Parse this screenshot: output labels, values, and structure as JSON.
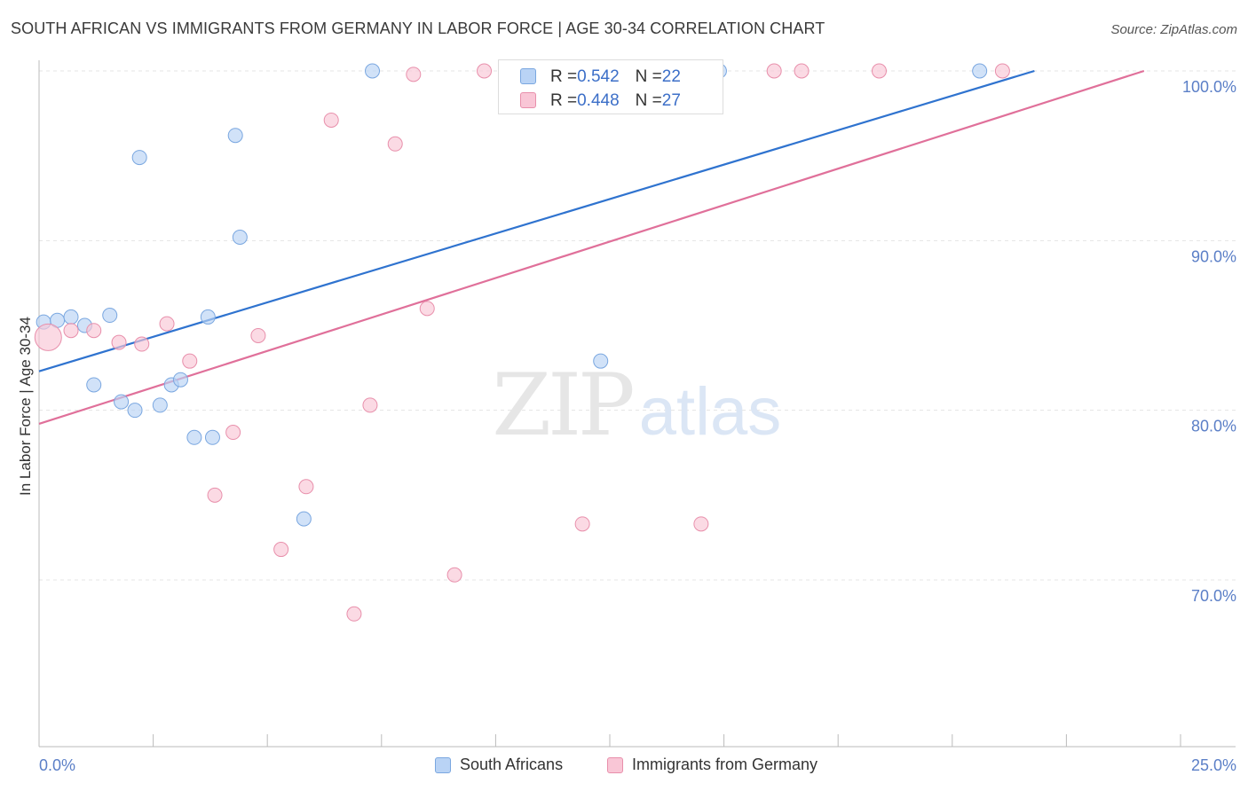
{
  "title": "SOUTH AFRICAN VS IMMIGRANTS FROM GERMANY IN LABOR FORCE | AGE 30-34 CORRELATION CHART",
  "source": "Source: ZipAtlas.com",
  "watermark": {
    "zip": "ZIP",
    "atlas": "atlas"
  },
  "legend_top": [
    {
      "r_label": "R = ",
      "r_value": "0.542",
      "n_label": "N = ",
      "n_value": "22",
      "swatch_fill": "#b9d3f5",
      "swatch_stroke": "#7aa7e0"
    },
    {
      "r_label": "R = ",
      "r_value": "0.448",
      "n_label": "N = ",
      "n_value": "27",
      "swatch_fill": "#f9c6d6",
      "swatch_stroke": "#e88fab"
    }
  ],
  "chart_data": {
    "type": "scatter",
    "title": "SOUTH AFRICAN VS IMMIGRANTS FROM GERMANY IN LABOR FORCE | AGE 30-34 CORRELATION CHART",
    "xlabel": "",
    "ylabel": "In Labor Force | Age 30-34",
    "xlim": [
      0,
      25
    ],
    "ylim": [
      60,
      101.5
    ],
    "x_tick_labels": [
      "0.0%",
      "25.0%"
    ],
    "y_ticks": [
      70,
      80,
      90,
      100
    ],
    "y_tick_labels": [
      "70.0%",
      "80.0%",
      "90.0%",
      "100.0%"
    ],
    "grid": true,
    "legend_position": "bottom",
    "series": [
      {
        "name": "South Africans",
        "color": "#7aa7e0",
        "fill": "#b9d3f5",
        "line_color": "#2f73cf",
        "trend": {
          "x": [
            0,
            21.8
          ],
          "y": [
            82.3,
            100.0
          ]
        },
        "points": [
          {
            "x": 0.1,
            "y": 85.2
          },
          {
            "x": 0.4,
            "y": 85.3
          },
          {
            "x": 0.7,
            "y": 85.5
          },
          {
            "x": 1.0,
            "y": 85.0
          },
          {
            "x": 1.2,
            "y": 81.5
          },
          {
            "x": 1.55,
            "y": 85.6
          },
          {
            "x": 1.8,
            "y": 80.5
          },
          {
            "x": 2.1,
            "y": 80.0
          },
          {
            "x": 2.2,
            "y": 94.9
          },
          {
            "x": 2.65,
            "y": 80.3
          },
          {
            "x": 2.9,
            "y": 81.5
          },
          {
            "x": 3.1,
            "y": 81.8
          },
          {
            "x": 3.4,
            "y": 78.4
          },
          {
            "x": 3.7,
            "y": 85.5
          },
          {
            "x": 3.8,
            "y": 78.4
          },
          {
            "x": 4.3,
            "y": 96.2
          },
          {
            "x": 4.4,
            "y": 90.2
          },
          {
            "x": 5.8,
            "y": 73.6
          },
          {
            "x": 7.3,
            "y": 100.0
          },
          {
            "x": 12.3,
            "y": 82.9
          },
          {
            "x": 14.9,
            "y": 100.0
          },
          {
            "x": 20.6,
            "y": 100.0
          }
        ]
      },
      {
        "name": "Immigrants from Germany",
        "color": "#e88fab",
        "fill": "#f9c6d6",
        "line_color": "#e0709a",
        "trend": {
          "x": [
            0,
            24.2
          ],
          "y": [
            79.2,
            100.0
          ]
        },
        "points": [
          {
            "x": 0.2,
            "y": 84.3,
            "size": "large"
          },
          {
            "x": 0.7,
            "y": 84.7
          },
          {
            "x": 1.2,
            "y": 84.7
          },
          {
            "x": 1.75,
            "y": 84.0
          },
          {
            "x": 2.25,
            "y": 83.9
          },
          {
            "x": 2.8,
            "y": 85.1
          },
          {
            "x": 3.3,
            "y": 82.9
          },
          {
            "x": 3.85,
            "y": 75.0
          },
          {
            "x": 4.25,
            "y": 78.7
          },
          {
            "x": 4.8,
            "y": 84.4
          },
          {
            "x": 5.3,
            "y": 71.8
          },
          {
            "x": 5.85,
            "y": 75.5
          },
          {
            "x": 6.4,
            "y": 97.1
          },
          {
            "x": 6.9,
            "y": 68.0
          },
          {
            "x": 7.25,
            "y": 80.3
          },
          {
            "x": 7.8,
            "y": 95.7
          },
          {
            "x": 8.2,
            "y": 99.8
          },
          {
            "x": 8.5,
            "y": 86.0
          },
          {
            "x": 9.1,
            "y": 70.3
          },
          {
            "x": 9.75,
            "y": 100.0
          },
          {
            "x": 11.1,
            "y": 100.0
          },
          {
            "x": 11.9,
            "y": 73.3
          },
          {
            "x": 14.5,
            "y": 73.3
          },
          {
            "x": 16.1,
            "y": 100.0
          },
          {
            "x": 16.7,
            "y": 100.0
          },
          {
            "x": 18.4,
            "y": 100.0
          },
          {
            "x": 21.1,
            "y": 100.0
          }
        ]
      }
    ]
  }
}
